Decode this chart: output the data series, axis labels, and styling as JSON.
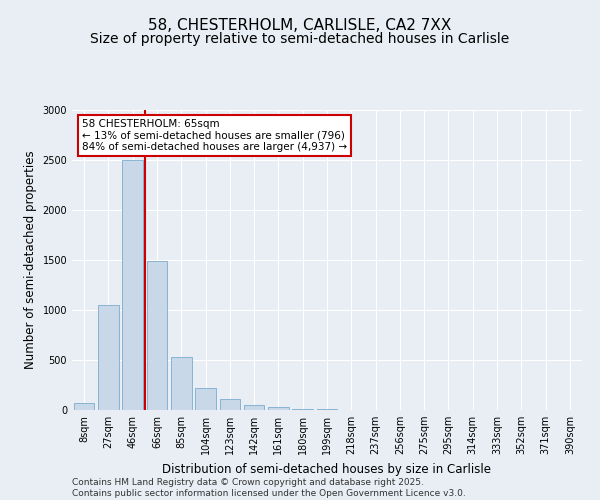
{
  "title_line1": "58, CHESTERHOLM, CARLISLE, CA2 7XX",
  "title_line2": "Size of property relative to semi-detached houses in Carlisle",
  "xlabel": "Distribution of semi-detached houses by size in Carlisle",
  "ylabel": "Number of semi-detached properties",
  "categories": [
    "8sqm",
    "27sqm",
    "46sqm",
    "66sqm",
    "85sqm",
    "104sqm",
    "123sqm",
    "142sqm",
    "161sqm",
    "180sqm",
    "199sqm",
    "218sqm",
    "237sqm",
    "256sqm",
    "275sqm",
    "295sqm",
    "314sqm",
    "333sqm",
    "352sqm",
    "371sqm",
    "390sqm"
  ],
  "values": [
    75,
    1050,
    2500,
    1490,
    530,
    220,
    110,
    55,
    35,
    10,
    10,
    5,
    0,
    0,
    0,
    0,
    0,
    0,
    0,
    0,
    0
  ],
  "bar_color": "#c8d8e8",
  "bar_edge_color": "#7aaccf",
  "vline_color": "#cc0000",
  "vline_x": 2.5,
  "ylim": [
    0,
    3000
  ],
  "yticks": [
    0,
    500,
    1000,
    1500,
    2000,
    2500,
    3000
  ],
  "annotation_text": "58 CHESTERHOLM: 65sqm\n← 13% of semi-detached houses are smaller (796)\n84% of semi-detached houses are larger (4,937) →",
  "annotation_box_facecolor": "#ffffff",
  "annotation_box_edgecolor": "#cc0000",
  "footer_line1": "Contains HM Land Registry data © Crown copyright and database right 2025.",
  "footer_line2": "Contains public sector information licensed under the Open Government Licence v3.0.",
  "background_color": "#e8eef4",
  "plot_background_color": "#e8eef4",
  "title_fontsize": 11,
  "subtitle_fontsize": 10,
  "axis_label_fontsize": 8.5,
  "tick_fontsize": 7,
  "annot_fontsize": 7.5,
  "footer_fontsize": 6.5
}
